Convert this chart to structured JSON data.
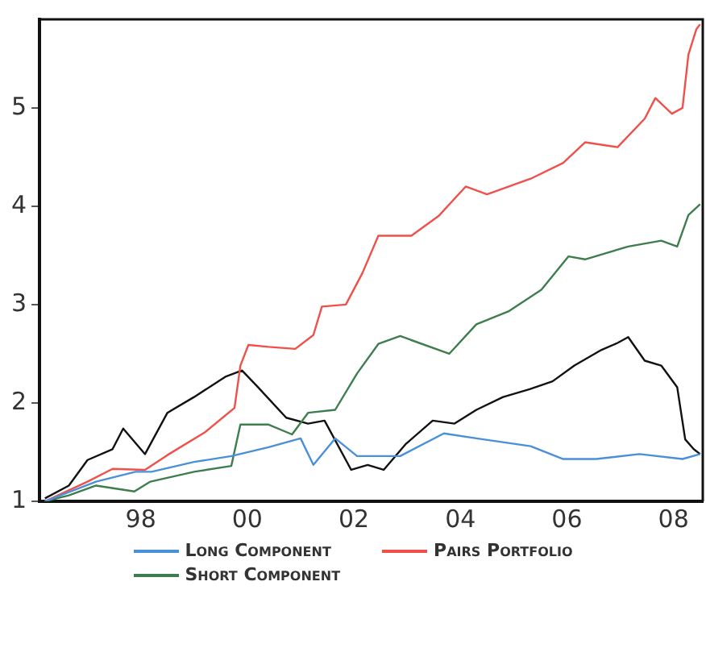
{
  "chart_data": {
    "type": "line",
    "xlim": [
      1996.1,
      2008.55
    ],
    "ylim": [
      1,
      5.9
    ],
    "xticks": [
      {
        "value": 1998,
        "label": "98"
      },
      {
        "value": 2000,
        "label": "00"
      },
      {
        "value": 2002,
        "label": "02"
      },
      {
        "value": 2004,
        "label": "04"
      },
      {
        "value": 2006,
        "label": "06"
      },
      {
        "value": 2008,
        "label": "08"
      }
    ],
    "yticks": [
      1,
      2,
      3,
      4,
      5
    ],
    "grid": false,
    "legend": "bottom",
    "marker": "none",
    "line_style": "solid",
    "series": [
      {
        "name": "Long Component",
        "color": "#4a90d9",
        "x": [
          1996.2,
          1997.16,
          1997.9,
          1998.2,
          1999.0,
          1999.7,
          2000.4,
          2001.0,
          2001.24,
          2001.65,
          2002.06,
          2002.87,
          2003.69,
          2004.3,
          2005.32,
          2005.93,
          2006.55,
          2007.36,
          2008.17,
          2008.5
        ],
        "values": [
          1.0,
          1.2,
          1.3,
          1.3,
          1.4,
          1.46,
          1.55,
          1.64,
          1.37,
          1.64,
          1.46,
          1.46,
          1.69,
          1.64,
          1.56,
          1.43,
          1.43,
          1.48,
          1.43,
          1.48
        ]
      },
      {
        "name": "Pairs Portfolio",
        "color": "#f0504a",
        "x": [
          1996.2,
          1997.0,
          1997.47,
          1998.08,
          1998.5,
          1999.2,
          1999.76,
          1999.87,
          2000.02,
          2000.4,
          2000.9,
          2001.24,
          2001.4,
          2001.85,
          2002.16,
          2002.46,
          2003.08,
          2003.59,
          2004.1,
          2004.5,
          2005.32,
          2005.93,
          2006.34,
          2006.95,
          2007.46,
          2007.66,
          2007.97,
          2008.17,
          2008.28,
          2008.43,
          2008.5
        ],
        "values": [
          1.0,
          1.2,
          1.33,
          1.32,
          1.47,
          1.7,
          1.95,
          2.38,
          2.59,
          2.57,
          2.55,
          2.69,
          2.98,
          3.0,
          3.32,
          3.7,
          3.7,
          3.9,
          4.2,
          4.12,
          4.28,
          4.44,
          4.65,
          4.6,
          4.89,
          5.1,
          4.94,
          5.0,
          5.54,
          5.8,
          5.85
        ]
      },
      {
        "name": "Short Component",
        "color": "#3e7d4e",
        "x": [
          1996.2,
          1996.65,
          1997.16,
          1997.88,
          1998.18,
          1999.0,
          1999.7,
          1999.87,
          2000.4,
          2000.84,
          2001.14,
          2001.65,
          2002.06,
          2002.46,
          2002.87,
          2003.79,
          2004.3,
          2004.9,
          2005.52,
          2006.03,
          2006.34,
          2007.15,
          2007.77,
          2008.07,
          2008.28,
          2008.5
        ],
        "values": [
          1.0,
          1.06,
          1.16,
          1.1,
          1.2,
          1.3,
          1.36,
          1.78,
          1.78,
          1.68,
          1.9,
          1.93,
          2.3,
          2.6,
          2.68,
          2.5,
          2.8,
          2.93,
          3.15,
          3.49,
          3.46,
          3.59,
          3.65,
          3.59,
          3.91,
          4.02
        ]
      },
      {
        "color": "#111111",
        "x": [
          1996.2,
          1996.65,
          1997.0,
          1997.47,
          1997.67,
          1998.08,
          1998.5,
          1999.0,
          1999.6,
          1999.9,
          2000.2,
          2000.73,
          2001.14,
          2001.45,
          2001.95,
          2002.26,
          2002.56,
          2002.97,
          2003.48,
          2003.89,
          2004.3,
          2004.8,
          2005.3,
          2005.73,
          2006.14,
          2006.65,
          2006.95,
          2007.15,
          2007.46,
          2007.77,
          2008.07,
          2008.22,
          2008.38,
          2008.5
        ],
        "values": [
          1.03,
          1.16,
          1.42,
          1.53,
          1.74,
          1.48,
          1.9,
          2.06,
          2.27,
          2.33,
          2.16,
          1.85,
          1.79,
          1.82,
          1.32,
          1.37,
          1.32,
          1.58,
          1.82,
          1.79,
          1.93,
          2.06,
          2.14,
          2.22,
          2.38,
          2.54,
          2.61,
          2.67,
          2.43,
          2.38,
          2.16,
          1.63,
          1.53,
          1.48
        ]
      }
    ]
  }
}
